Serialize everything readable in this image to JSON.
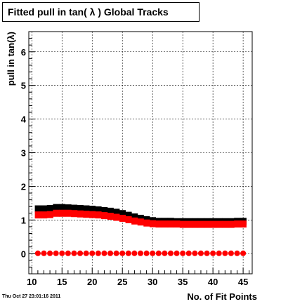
{
  "chart_data": {
    "type": "scatter",
    "title": "Fitted pull in tan( λ )  Global Tracks",
    "xlabel": "No. of Fit Points",
    "ylabel": "pull in tan(λ)",
    "xlim": [
      9.5,
      46.5
    ],
    "ylim": [
      -0.6,
      6.6
    ],
    "xticks": [
      10,
      15,
      20,
      25,
      30,
      35,
      40,
      45
    ],
    "yticks": [
      0,
      1,
      2,
      3,
      4,
      5,
      6
    ],
    "grid": true,
    "legend": "none",
    "x": [
      11,
      12,
      13,
      14,
      15,
      16,
      17,
      18,
      19,
      20,
      21,
      22,
      23,
      24,
      25,
      26,
      27,
      28,
      29,
      30,
      31,
      32,
      33,
      34,
      35,
      36,
      37,
      38,
      39,
      40,
      41,
      42,
      43,
      44,
      45
    ],
    "series": [
      {
        "color": "#000000",
        "marker": "box",
        "values": [
          1.33,
          1.33,
          1.34,
          1.37,
          1.37,
          1.36,
          1.35,
          1.34,
          1.33,
          1.32,
          1.3,
          1.28,
          1.26,
          1.23,
          1.19,
          1.14,
          1.09,
          1.05,
          1.01,
          0.98,
          0.96,
          0.96,
          0.96,
          0.95,
          0.95,
          0.95,
          0.95,
          0.95,
          0.95,
          0.95,
          0.95,
          0.95,
          0.95,
          0.96,
          0.96
        ]
      },
      {
        "color": "#ff0000",
        "marker": "box",
        "values": [
          1.15,
          1.15,
          1.16,
          1.2,
          1.2,
          1.2,
          1.19,
          1.18,
          1.17,
          1.16,
          1.15,
          1.13,
          1.11,
          1.08,
          1.05,
          1.01,
          0.97,
          0.94,
          0.91,
          0.89,
          0.88,
          0.88,
          0.88,
          0.88,
          0.87,
          0.87,
          0.87,
          0.87,
          0.87,
          0.87,
          0.87,
          0.87,
          0.87,
          0.88,
          0.88
        ]
      },
      {
        "color": "#ff0000",
        "marker": "circle",
        "values": [
          0.01,
          0.01,
          0.01,
          0.01,
          0.01,
          0.01,
          0.01,
          0.01,
          0.01,
          0.01,
          0.01,
          0.01,
          0.01,
          0.01,
          0.01,
          0.01,
          0.01,
          0.01,
          0.01,
          0.01,
          0.01,
          0.01,
          0.01,
          0.01,
          0.01,
          0.01,
          0.01,
          0.01,
          0.01,
          0.01,
          0.01,
          0.01,
          0.01,
          0.01,
          0.01
        ]
      }
    ]
  },
  "timestamp": "Thu Oct 27 23:01:16 2011"
}
